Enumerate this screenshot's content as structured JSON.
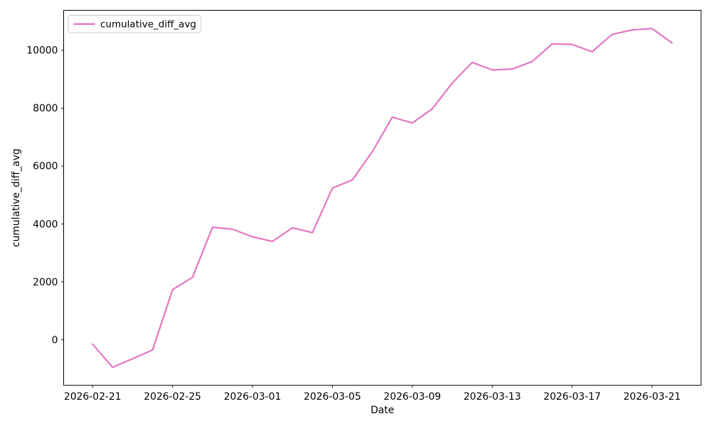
{
  "chart_data": {
    "type": "line",
    "title": "",
    "xlabel": "Date",
    "ylabel": "cumulative_diff_avg",
    "grid": false,
    "background_color": "#ffffff",
    "legend": {
      "position": "upper left",
      "entries": [
        "cumulative_diff_avg"
      ]
    },
    "x": [
      "2026-02-21",
      "2026-02-22",
      "2026-02-23",
      "2026-02-24",
      "2026-02-25",
      "2026-02-26",
      "2026-02-27",
      "2026-02-28",
      "2026-03-01",
      "2026-03-02",
      "2026-03-03",
      "2026-03-04",
      "2026-03-05",
      "2026-03-06",
      "2026-03-07",
      "2026-03-08",
      "2026-03-09",
      "2026-03-10",
      "2026-03-11",
      "2026-03-12",
      "2026-03-13",
      "2026-03-14",
      "2026-03-15",
      "2026-03-16",
      "2026-03-17",
      "2026-03-18",
      "2026-03-19",
      "2026-03-20",
      "2026-03-21",
      "2026-03-22"
    ],
    "series": [
      {
        "name": "cumulative_diff_avg",
        "color": "#e377c2",
        "values": [
          -150,
          -950,
          -650,
          -350,
          1730,
          2160,
          3890,
          3820,
          3560,
          3400,
          3870,
          3700,
          5240,
          5520,
          6500,
          7690,
          7490,
          7980,
          8870,
          9580,
          9320,
          9350,
          9610,
          10220,
          10200,
          9950,
          10550,
          10700,
          10750,
          10250
        ]
      }
    ],
    "ylim": [
      -1570,
      11380
    ],
    "ytick_values": [
      0,
      2000,
      4000,
      6000,
      8000,
      10000
    ],
    "ytick_labels": [
      "0",
      "2000",
      "4000",
      "6000",
      "8000",
      "10000"
    ],
    "xtick_indices": [
      0,
      4,
      8,
      12,
      16,
      20,
      24,
      28
    ],
    "xtick_labels": [
      "2026-02-21",
      "2026-02-25",
      "2026-03-01",
      "2026-03-05",
      "2026-03-09",
      "2026-03-13",
      "2026-03-17",
      "2026-03-21"
    ]
  }
}
